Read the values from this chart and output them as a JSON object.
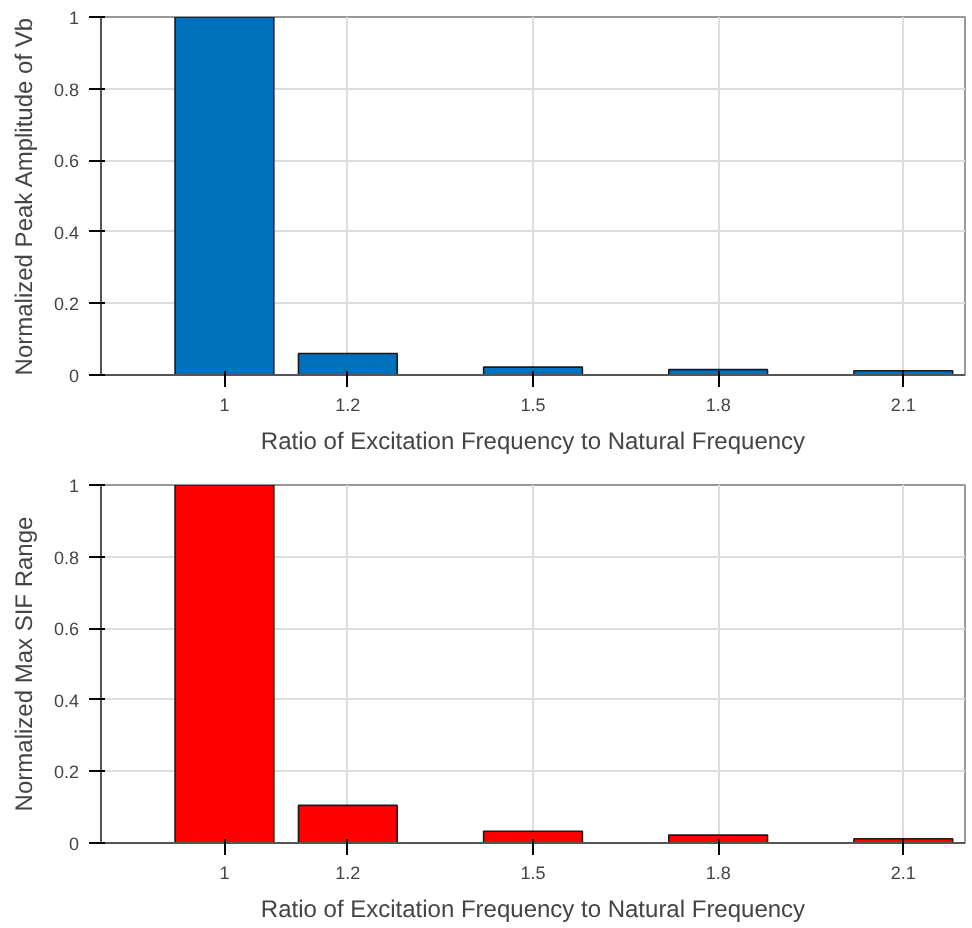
{
  "chart_data": [
    {
      "type": "bar",
      "x": [
        1,
        1.2,
        1.5,
        1.8,
        2.1
      ],
      "values": [
        1,
        0.06,
        0.022,
        0.015,
        0.012
      ],
      "color": "#0072bd",
      "xlabel": "Ratio of Excitation Frequency to Natural Frequency",
      "ylabel": "Normalized Peak Amplitude of Vb",
      "xlim": [
        0.8,
        2.2
      ],
      "ylim": [
        0,
        1
      ],
      "xticks": [
        1,
        1.2,
        1.5,
        1.8,
        2.1
      ],
      "yticks": [
        0,
        0.2,
        0.4,
        0.6,
        0.8,
        1
      ],
      "grid": true
    },
    {
      "type": "bar",
      "x": [
        1,
        1.2,
        1.5,
        1.8,
        2.1
      ],
      "values": [
        1,
        0.105,
        0.033,
        0.022,
        0.012
      ],
      "color": "#ff0000",
      "xlabel": "Ratio of Excitation Frequency to Natural Frequency",
      "ylabel": "Normalized Max SIF Range",
      "xlim": [
        0.8,
        2.2
      ],
      "ylim": [
        0,
        1
      ],
      "xticks": [
        1,
        1.2,
        1.5,
        1.8,
        2.1
      ],
      "yticks": [
        0,
        0.2,
        0.4,
        0.6,
        0.8,
        1
      ],
      "grid": true
    }
  ]
}
